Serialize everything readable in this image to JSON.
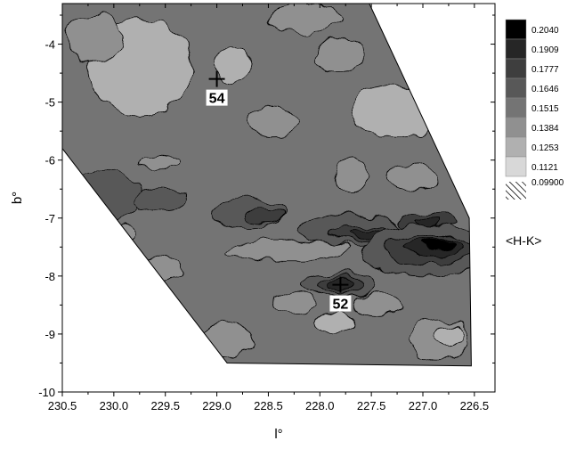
{
  "chart_data": {
    "type": "heatmap",
    "subtype": "filled-contour-map",
    "title": "",
    "xlabel": "l°",
    "ylabel": "b°",
    "xlim": [
      230.5,
      226.3
    ],
    "ylim": [
      -10,
      -3.3
    ],
    "x_reversed": true,
    "x_ticks": [
      {
        "value": 230.5,
        "label": "230.5"
      },
      {
        "value": 230.0,
        "label": "230.0"
      },
      {
        "value": 229.5,
        "label": "229.5"
      },
      {
        "value": 229.0,
        "label": "229.0"
      },
      {
        "value": 228.5,
        "label": "228.5"
      },
      {
        "value": 228.0,
        "label": "228.0"
      },
      {
        "value": 227.5,
        "label": "227.5"
      },
      {
        "value": 227.0,
        "label": "227.0"
      },
      {
        "value": 226.5,
        "label": "226.5"
      }
    ],
    "y_ticks": [
      {
        "value": -4,
        "label": "-4"
      },
      {
        "value": -5,
        "label": "-5"
      },
      {
        "value": -6,
        "label": "-6"
      },
      {
        "value": -7,
        "label": "-7"
      },
      {
        "value": -8,
        "label": "-8"
      },
      {
        "value": -9,
        "label": "-9"
      },
      {
        "value": -10,
        "label": "-10"
      }
    ],
    "legend": {
      "title": "<H-K>",
      "position": "right",
      "levels": [
        {
          "label": "0.2040",
          "color": "#000000"
        },
        {
          "label": "0.1909",
          "color": "#262626"
        },
        {
          "label": "0.1777",
          "color": "#3e3e3e"
        },
        {
          "label": "0.1646",
          "color": "#585858"
        },
        {
          "label": "0.1515",
          "color": "#747474"
        },
        {
          "label": "0.1384",
          "color": "#909090"
        },
        {
          "label": "0.1253",
          "color": "#b0b0b0"
        },
        {
          "label": "0.1121",
          "color": "#d8d8d8"
        },
        {
          "label": "0.09900",
          "color": "hatched"
        }
      ]
    },
    "map_boundary": [
      [
        230.5,
        -3.3
      ],
      [
        227.52,
        -3.3
      ],
      [
        226.55,
        -7.0
      ],
      [
        226.53,
        -9.55
      ],
      [
        228.9,
        -9.5
      ],
      [
        230.5,
        -5.8
      ]
    ],
    "field_markers": [
      {
        "label": "54",
        "l": 229.0,
        "b": -4.6
      },
      {
        "label": "52",
        "l": 227.8,
        "b": -8.15
      }
    ],
    "regions": [
      {
        "level": 0.1121,
        "l": 229.75,
        "b": -4.5,
        "rl": 0.35,
        "rb": 0.55
      },
      {
        "level": 0.1253,
        "l": 229.75,
        "b": -4.4,
        "rl": 0.5,
        "rb": 0.85
      },
      {
        "level": 0.1384,
        "l": 230.2,
        "b": -3.9,
        "rl": 0.28,
        "rb": 0.4
      },
      {
        "level": 0.1121,
        "l": 228.85,
        "b": -4.35,
        "rl": 0.08,
        "rb": 0.18
      },
      {
        "level": 0.1253,
        "l": 228.85,
        "b": -4.35,
        "rl": 0.18,
        "rb": 0.3
      },
      {
        "level": 0.1384,
        "l": 228.15,
        "b": -3.55,
        "rl": 0.35,
        "rb": 0.25
      },
      {
        "level": 0.1384,
        "l": 227.8,
        "b": -4.2,
        "rl": 0.25,
        "rb": 0.3
      },
      {
        "level": 0.1121,
        "l": 227.25,
        "b": -5.2,
        "rl": 0.28,
        "rb": 0.25
      },
      {
        "level": 0.1253,
        "l": 227.25,
        "b": -5.15,
        "rl": 0.45,
        "rb": 0.45
      },
      {
        "level": 0.1384,
        "l": 228.45,
        "b": -5.35,
        "rl": 0.25,
        "rb": 0.25
      },
      {
        "level": 0.1384,
        "l": 227.7,
        "b": -6.25,
        "rl": 0.15,
        "rb": 0.3
      },
      {
        "level": 0.1384,
        "l": 229.55,
        "b": -6.05,
        "rl": 0.2,
        "rb": 0.12
      },
      {
        "level": 0.1384,
        "l": 229.9,
        "b": -7.25,
        "rl": 0.1,
        "rb": 0.15
      },
      {
        "level": 0.1646,
        "l": 230.1,
        "b": -6.6,
        "rl": 0.35,
        "rb": 0.45
      },
      {
        "level": 0.1646,
        "l": 229.55,
        "b": -6.7,
        "rl": 0.25,
        "rb": 0.18
      },
      {
        "level": 0.1646,
        "l": 228.7,
        "b": -6.9,
        "rl": 0.35,
        "rb": 0.25
      },
      {
        "level": 0.1777,
        "l": 228.55,
        "b": -6.95,
        "rl": 0.18,
        "rb": 0.12
      },
      {
        "level": 0.1646,
        "l": 227.7,
        "b": -7.2,
        "rl": 0.5,
        "rb": 0.25
      },
      {
        "level": 0.1777,
        "l": 227.6,
        "b": -7.25,
        "rl": 0.3,
        "rb": 0.12
      },
      {
        "level": 0.1909,
        "l": 227.55,
        "b": -7.25,
        "rl": 0.15,
        "rb": 0.07
      },
      {
        "level": 0.1777,
        "l": 226.95,
        "b": -7.05,
        "rl": 0.28,
        "rb": 0.15
      },
      {
        "level": 0.1909,
        "l": 226.95,
        "b": -7.05,
        "rl": 0.12,
        "rb": 0.08
      },
      {
        "level": 0.1646,
        "l": 227.0,
        "b": -7.55,
        "rl": 0.6,
        "rb": 0.45
      },
      {
        "level": 0.1777,
        "l": 226.95,
        "b": -7.55,
        "rl": 0.45,
        "rb": 0.25
      },
      {
        "level": 0.1909,
        "l": 226.9,
        "b": -7.5,
        "rl": 0.3,
        "rb": 0.15
      },
      {
        "level": 0.204,
        "l": 226.85,
        "b": -7.45,
        "rl": 0.15,
        "rb": 0.08
      },
      {
        "level": 0.1384,
        "l": 228.3,
        "b": -7.55,
        "rl": 0.6,
        "rb": 0.18
      },
      {
        "level": 0.1384,
        "l": 229.6,
        "b": -7.9,
        "rl": 0.25,
        "rb": 0.25
      },
      {
        "level": 0.1646,
        "l": 227.8,
        "b": -8.15,
        "rl": 0.35,
        "rb": 0.2
      },
      {
        "level": 0.1777,
        "l": 227.8,
        "b": -8.15,
        "rl": 0.22,
        "rb": 0.13
      },
      {
        "level": 0.1909,
        "l": 227.8,
        "b": -8.15,
        "rl": 0.12,
        "rb": 0.08
      },
      {
        "level": 0.1384,
        "l": 227.45,
        "b": -8.5,
        "rl": 0.25,
        "rb": 0.2
      },
      {
        "level": 0.1384,
        "l": 228.25,
        "b": -8.45,
        "rl": 0.2,
        "rb": 0.2
      },
      {
        "level": 0.1253,
        "l": 227.85,
        "b": -8.8,
        "rl": 0.2,
        "rb": 0.18
      },
      {
        "level": 0.1384,
        "l": 228.9,
        "b": -9.1,
        "rl": 0.25,
        "rb": 0.3
      },
      {
        "level": 0.1384,
        "l": 226.85,
        "b": -9.1,
        "rl": 0.3,
        "rb": 0.35
      },
      {
        "level": 0.1253,
        "l": 226.75,
        "b": -9.05,
        "rl": 0.15,
        "rb": 0.2
      },
      {
        "level": 0.1384,
        "l": 227.1,
        "b": -6.3,
        "rl": 0.25,
        "rb": 0.25
      }
    ]
  }
}
